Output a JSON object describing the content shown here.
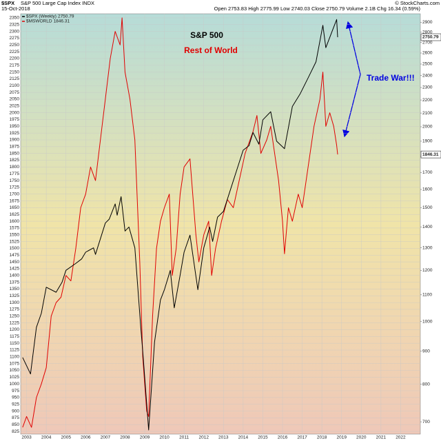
{
  "chart_data": {
    "type": "line",
    "symbol": "$SPX",
    "name": "S&P 500 Large Cap Index INDX",
    "date": "15-Oct-2018",
    "quote": "Open 2753.83  High 2775.99  Low 2740.03  Close 2750.79  Volume 2.1B  Chg 16.34 (0.59%)",
    "credit": "© StockCharts.com",
    "annotations": [
      {
        "text": "S&P 500",
        "color": "#000000"
      },
      {
        "text": "Rest of World",
        "color": "#e00000"
      },
      {
        "text": "Trade War!!!",
        "color": "#0000e0"
      }
    ],
    "xlim": [
      2002.7,
      2023.0
    ],
    "xticks": [
      2003,
      2004,
      2005,
      2006,
      2007,
      2008,
      2009,
      2010,
      2011,
      2012,
      2013,
      2014,
      2015,
      2016,
      2017,
      2018,
      2019,
      2020,
      2021,
      2022
    ],
    "ylim": [
      815,
      2365
    ],
    "yticks": [
      825,
      850,
      875,
      900,
      925,
      950,
      975,
      1000,
      1025,
      1050,
      1075,
      1100,
      1125,
      1150,
      1175,
      1200,
      1225,
      1250,
      1275,
      1300,
      1325,
      1350,
      1375,
      1400,
      1425,
      1450,
      1475,
      1500,
      1525,
      1550,
      1575,
      1600,
      1625,
      1650,
      1675,
      1700,
      1725,
      1750,
      1775,
      1800,
      1825,
      1850,
      1875,
      1900,
      1925,
      1950,
      1975,
      2000,
      2025,
      2050,
      2075,
      2100,
      2125,
      2150,
      2175,
      2200,
      2225,
      2250,
      2275,
      2300,
      2325,
      2350
    ],
    "y2lim": [
      670,
      2990
    ],
    "y2ticks": [
      700,
      800,
      900,
      1000,
      1100,
      1200,
      1300,
      1400,
      1500,
      1600,
      1700,
      1800,
      1900,
      2000,
      2100,
      2200,
      2300,
      2400,
      2500,
      2600,
      2700,
      2800,
      2900
    ],
    "y2log": true,
    "grid": true,
    "series": [
      {
        "name": "$SPX (Weekly)",
        "color": "#000000",
        "axis": "y2",
        "x": [
          2002.8,
          2003.2,
          2003.5,
          2003.75,
          2004.0,
          2004.5,
          2004.8,
          2005.0,
          2005.5,
          2005.8,
          2006.0,
          2006.4,
          2006.5,
          2007.0,
          2007.2,
          2007.5,
          2007.6,
          2007.8,
          2008.0,
          2008.2,
          2008.5,
          2008.8,
          2008.9,
          2009.2,
          2009.5,
          2009.8,
          2010.0,
          2010.3,
          2010.5,
          2010.8,
          2011.0,
          2011.3,
          2011.7,
          2012.0,
          2012.3,
          2012.45,
          2012.7,
          2013.0,
          2013.5,
          2014.0,
          2014.3,
          2014.5,
          2014.8,
          2015.0,
          2015.4,
          2015.7,
          2016.1,
          2016.5,
          2016.9,
          2017.3,
          2017.7,
          2018.05,
          2018.2,
          2018.5,
          2018.75,
          2018.8
        ],
        "values": [
          880,
          830,
          980,
          1030,
          1130,
          1110,
          1150,
          1200,
          1230,
          1250,
          1280,
          1300,
          1270,
          1420,
          1440,
          1520,
          1460,
          1560,
          1380,
          1400,
          1300,
          980,
          900,
          680,
          930,
          1080,
          1120,
          1200,
          1050,
          1180,
          1280,
          1360,
          1120,
          1300,
          1400,
          1330,
          1450,
          1480,
          1650,
          1840,
          1870,
          1960,
          1880,
          2050,
          2110,
          1900,
          1850,
          2150,
          2250,
          2380,
          2520,
          2870,
          2650,
          2800,
          2930,
          2750.79
        ]
      },
      {
        "name": "$MSWORLD",
        "color": "#e00000",
        "x": [
          2002.8,
          2003.0,
          2003.25,
          2003.5,
          2003.75,
          2004.0,
          2004.25,
          2004.5,
          2004.75,
          2005.0,
          2005.25,
          2005.5,
          2005.75,
          2006.0,
          2006.25,
          2006.5,
          2006.75,
          2007.0,
          2007.25,
          2007.5,
          2007.75,
          2007.85,
          2008.0,
          2008.25,
          2008.5,
          2008.75,
          2008.9,
          2009.1,
          2009.2,
          2009.4,
          2009.6,
          2009.8,
          2010.0,
          2010.25,
          2010.4,
          2010.6,
          2010.8,
          2011.0,
          2011.3,
          2011.6,
          2011.75,
          2012.0,
          2012.25,
          2012.4,
          2012.6,
          2012.9,
          2013.2,
          2013.5,
          2013.8,
          2014.1,
          2014.5,
          2014.7,
          2014.9,
          2015.2,
          2015.4,
          2015.6,
          2015.8,
          2016.0,
          2016.1,
          2016.3,
          2016.5,
          2016.8,
          2017.0,
          2017.3,
          2017.6,
          2017.9,
          2018.05,
          2018.2,
          2018.4,
          2018.6,
          2018.75,
          2018.8
        ],
        "values": [
          840,
          880,
          840,
          950,
          1000,
          1060,
          1250,
          1300,
          1320,
          1400,
          1380,
          1500,
          1650,
          1700,
          1800,
          1750,
          1900,
          2050,
          2200,
          2300,
          2250,
          2350,
          2150,
          2050,
          1900,
          1450,
          1100,
          900,
          880,
          1250,
          1500,
          1600,
          1650,
          1700,
          1400,
          1500,
          1700,
          1800,
          1830,
          1550,
          1450,
          1550,
          1600,
          1400,
          1500,
          1600,
          1680,
          1650,
          1750,
          1850,
          1930,
          1990,
          1850,
          1900,
          1950,
          1850,
          1750,
          1600,
          1480,
          1650,
          1600,
          1700,
          1650,
          1800,
          1950,
          2050,
          2150,
          1950,
          2000,
          1950,
          1880,
          1846.31
        ]
      }
    ]
  }
}
